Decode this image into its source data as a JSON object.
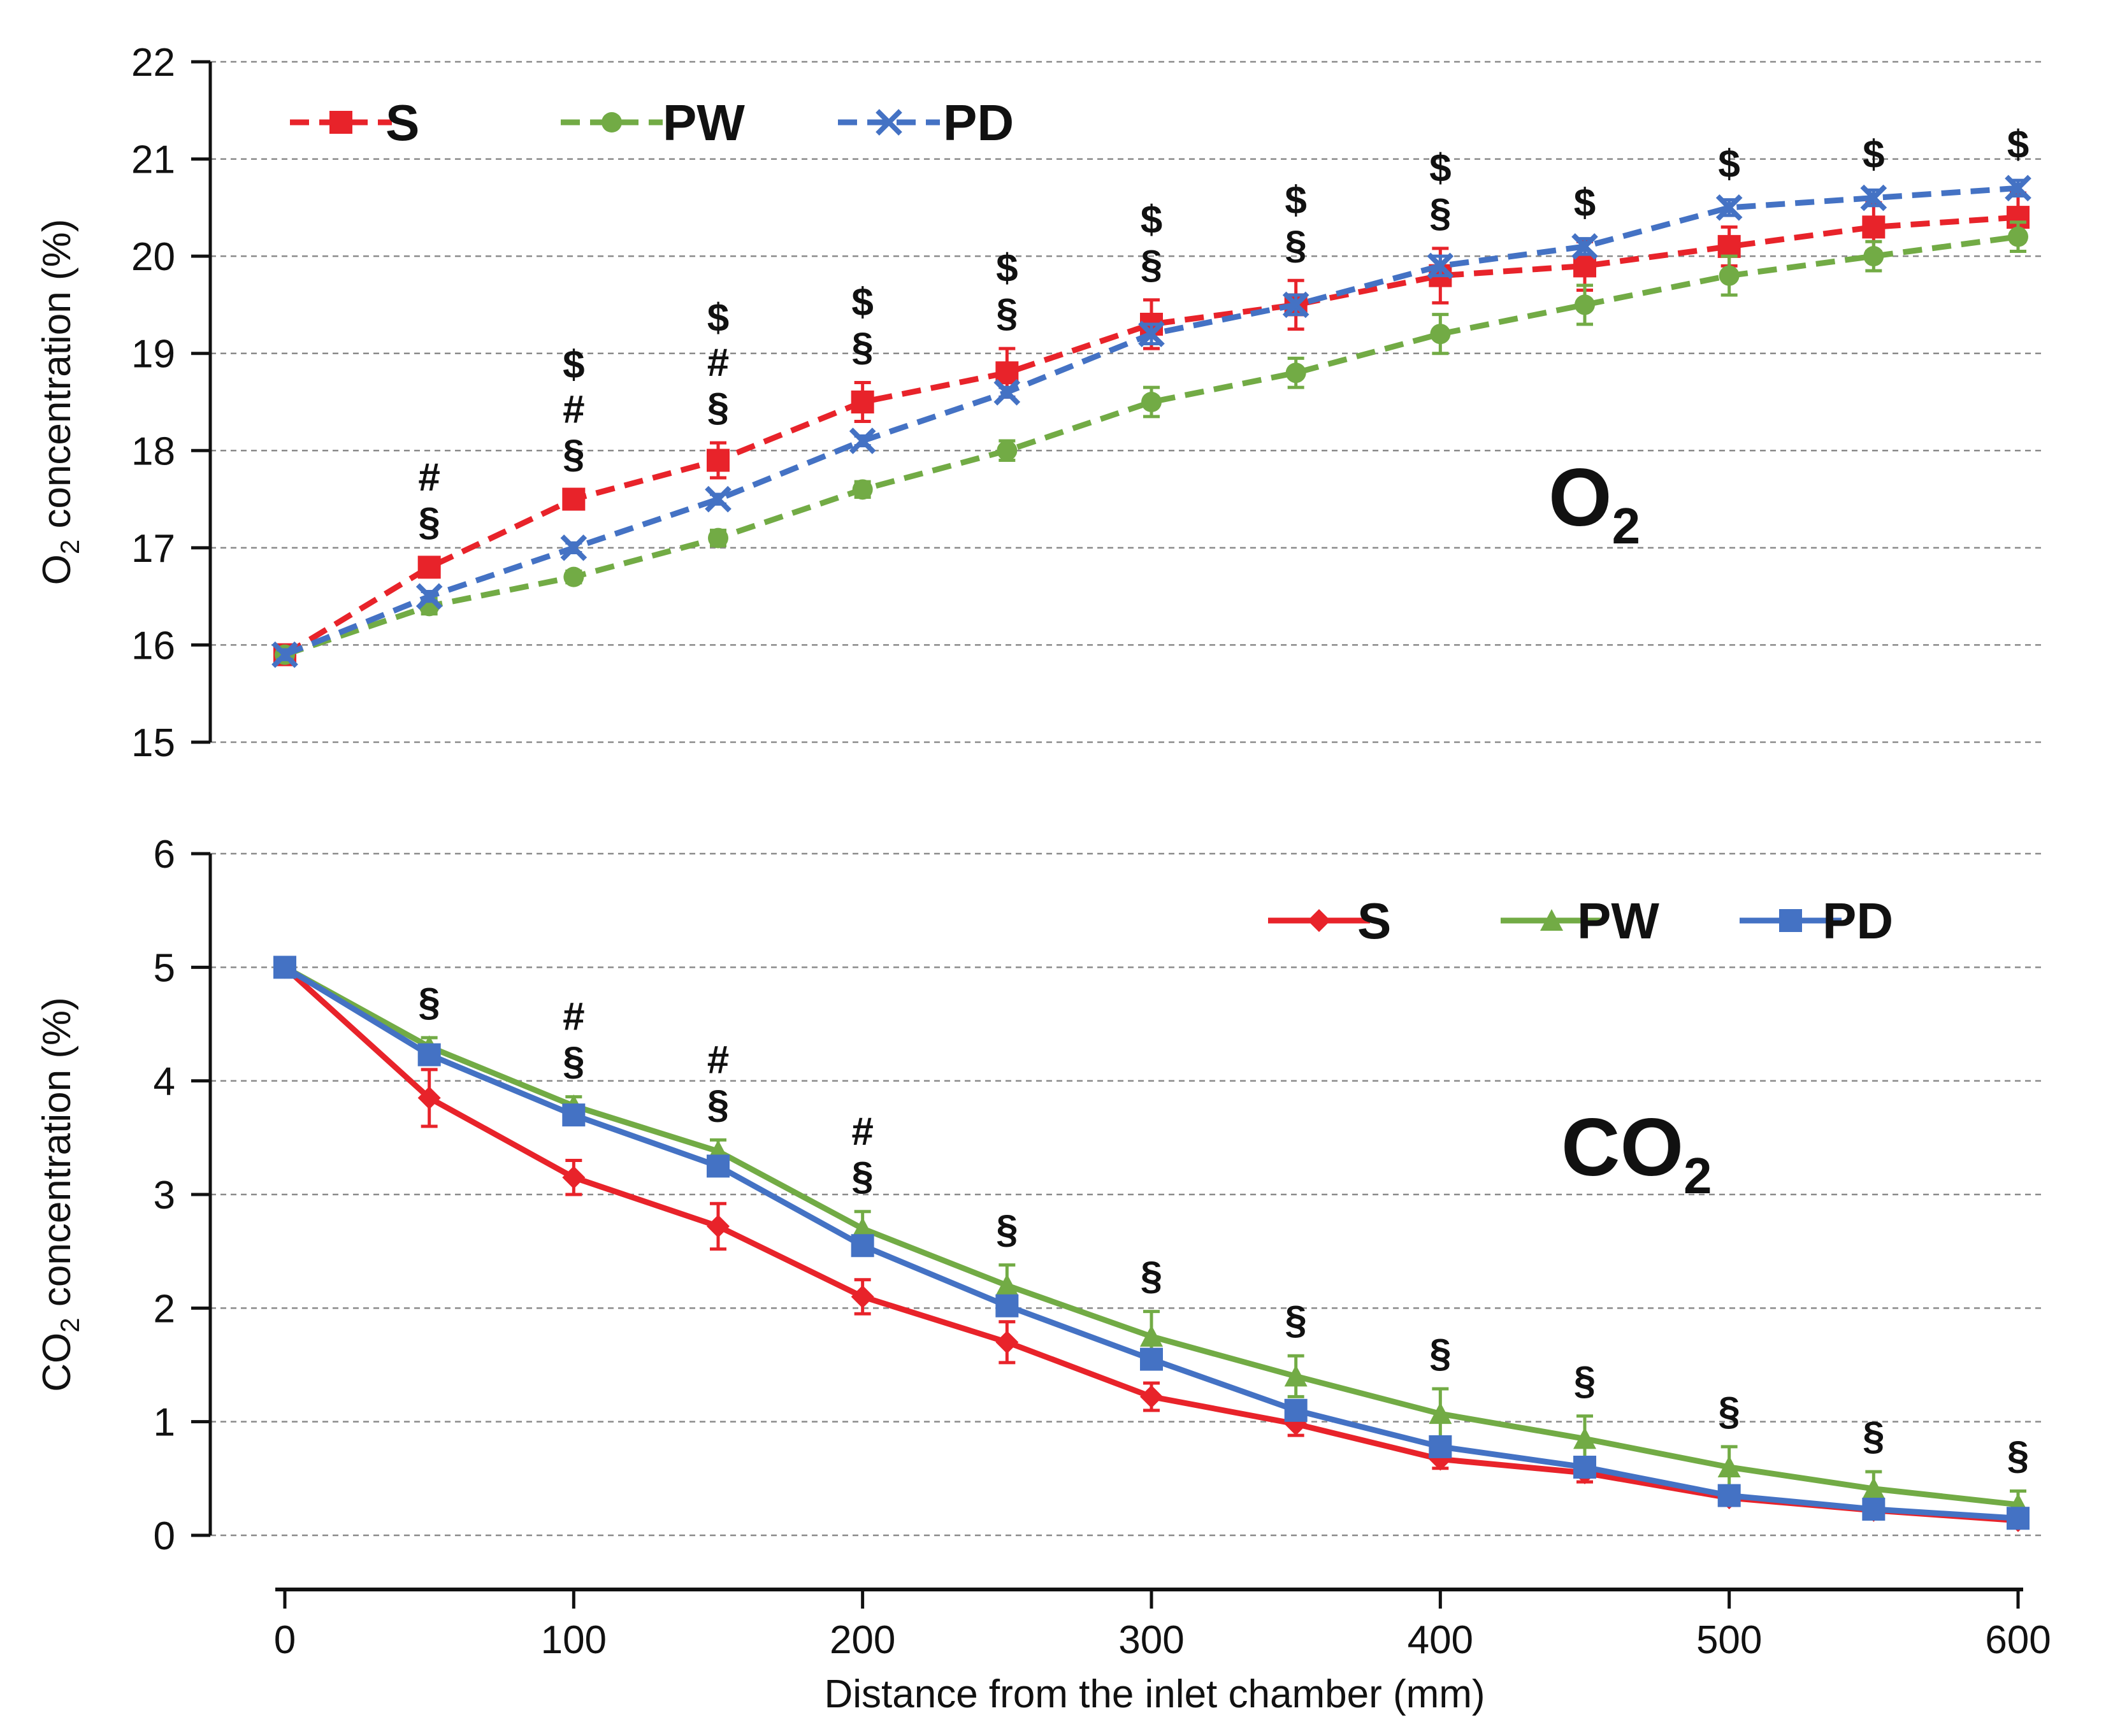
{
  "chart_data": [
    {
      "type": "line",
      "label": "O",
      "label_sub": "2",
      "ylabel_main": "O",
      "ylabel_sub": "2",
      "ylabel_rest": " concentration (%)",
      "ylim": [
        15,
        22
      ],
      "yticks": [
        15,
        16,
        17,
        18,
        19,
        20,
        21,
        22
      ],
      "xlim": [
        0,
        600
      ],
      "grid": true,
      "legend_position": "top-left",
      "x": [
        0,
        50,
        100,
        150,
        200,
        250,
        300,
        350,
        400,
        450,
        500,
        550,
        600
      ],
      "series": [
        {
          "name": "S",
          "color": "#e8232a",
          "marker": "square",
          "dashed": true,
          "values": [
            15.9,
            16.8,
            17.5,
            17.9,
            18.5,
            18.8,
            19.3,
            19.5,
            19.8,
            19.9,
            20.1,
            20.3,
            20.4
          ],
          "errors": [
            0.05,
            0.1,
            0.1,
            0.18,
            0.2,
            0.25,
            0.25,
            0.25,
            0.28,
            0.25,
            0.2,
            0.25,
            0.25
          ]
        },
        {
          "name": "PW",
          "color": "#72ab45",
          "marker": "circle",
          "dashed": true,
          "values": [
            15.9,
            16.4,
            16.7,
            17.1,
            17.6,
            18.0,
            18.5,
            18.8,
            19.2,
            19.5,
            19.8,
            20.0,
            20.2
          ],
          "errors": [
            0.05,
            0.08,
            0.06,
            0.08,
            0.08,
            0.1,
            0.15,
            0.15,
            0.2,
            0.2,
            0.2,
            0.15,
            0.15
          ]
        },
        {
          "name": "PD",
          "color": "#4472c4",
          "marker": "x",
          "dashed": true,
          "values": [
            15.9,
            16.5,
            17.0,
            17.5,
            18.1,
            18.6,
            19.2,
            19.5,
            19.9,
            20.1,
            20.5,
            20.6,
            20.7
          ],
          "errors": [
            0.05,
            0.05,
            0.05,
            0.05,
            0.05,
            0.05,
            0.1,
            0.1,
            0.1,
            0.08,
            0.08,
            0.08,
            0.08
          ]
        }
      ],
      "annotations": [
        {
          "x": 50,
          "lines": [
            "#",
            "§"
          ]
        },
        {
          "x": 100,
          "lines": [
            "$",
            "#",
            "§"
          ]
        },
        {
          "x": 150,
          "lines": [
            "$",
            "#",
            "§"
          ]
        },
        {
          "x": 200,
          "lines": [
            "$",
            "§"
          ]
        },
        {
          "x": 250,
          "lines": [
            "$",
            "§"
          ]
        },
        {
          "x": 300,
          "lines": [
            "$",
            "§"
          ]
        },
        {
          "x": 350,
          "lines": [
            "$",
            "§"
          ]
        },
        {
          "x": 400,
          "lines": [
            "$",
            "§"
          ]
        },
        {
          "x": 450,
          "lines": [
            "$"
          ]
        },
        {
          "x": 500,
          "lines": [
            "$"
          ]
        },
        {
          "x": 550,
          "lines": [
            "$"
          ]
        },
        {
          "x": 600,
          "lines": [
            "$"
          ]
        }
      ]
    },
    {
      "type": "line",
      "label": "CO",
      "label_sub": "2",
      "ylabel_main": "CO",
      "ylabel_sub": "2",
      "ylabel_rest": " concentration (%)",
      "ylim": [
        0,
        6
      ],
      "yticks": [
        0,
        1,
        2,
        3,
        4,
        5,
        6
      ],
      "xlim": [
        0,
        600
      ],
      "grid": true,
      "legend_position": "top-right",
      "x": [
        0,
        50,
        100,
        150,
        200,
        250,
        300,
        350,
        400,
        450,
        500,
        550,
        600
      ],
      "series": [
        {
          "name": "S",
          "color": "#e8232a",
          "marker": "diamond",
          "dashed": false,
          "values": [
            5.0,
            3.85,
            3.15,
            2.72,
            2.1,
            1.7,
            1.22,
            0.98,
            0.67,
            0.55,
            0.33,
            0.22,
            0.13
          ],
          "errors": [
            0.02,
            0.25,
            0.15,
            0.2,
            0.15,
            0.18,
            0.12,
            0.1,
            0.08,
            0.08,
            0.05,
            0.05,
            0.03
          ]
        },
        {
          "name": "PW",
          "color": "#72ab45",
          "marker": "triangle",
          "dashed": false,
          "values": [
            5.0,
            4.3,
            3.78,
            3.38,
            2.7,
            2.2,
            1.75,
            1.4,
            1.07,
            0.85,
            0.6,
            0.41,
            0.27
          ],
          "errors": [
            0.02,
            0.08,
            0.08,
            0.1,
            0.15,
            0.18,
            0.22,
            0.18,
            0.22,
            0.2,
            0.18,
            0.15,
            0.12
          ]
        },
        {
          "name": "PD",
          "color": "#4472c4",
          "marker": "square",
          "dashed": false,
          "values": [
            5.0,
            4.23,
            3.7,
            3.25,
            2.55,
            2.02,
            1.55,
            1.1,
            0.78,
            0.6,
            0.35,
            0.23,
            0.15
          ],
          "errors": [
            0.02,
            0.05,
            0.05,
            0.05,
            0.05,
            0.05,
            0.05,
            0.05,
            0.05,
            0.05,
            0.04,
            0.03,
            0.03
          ]
        }
      ],
      "annotations": [
        {
          "x": 50,
          "lines": [
            "§"
          ]
        },
        {
          "x": 100,
          "lines": [
            "#",
            "§"
          ]
        },
        {
          "x": 150,
          "lines": [
            "#",
            "§"
          ]
        },
        {
          "x": 200,
          "lines": [
            "#",
            "§"
          ]
        },
        {
          "x": 250,
          "lines": [
            "§"
          ]
        },
        {
          "x": 300,
          "lines": [
            "§"
          ]
        },
        {
          "x": 350,
          "lines": [
            "§"
          ]
        },
        {
          "x": 400,
          "lines": [
            "§"
          ]
        },
        {
          "x": 450,
          "lines": [
            "§"
          ]
        },
        {
          "x": 500,
          "lines": [
            "§"
          ]
        },
        {
          "x": 550,
          "lines": [
            "§"
          ]
        },
        {
          "x": 600,
          "lines": [
            "§"
          ]
        }
      ]
    }
  ],
  "xaxis": {
    "label": "Distance from the inlet chamber (mm)",
    "ticks": [
      0,
      100,
      200,
      300,
      400,
      500,
      600
    ]
  }
}
